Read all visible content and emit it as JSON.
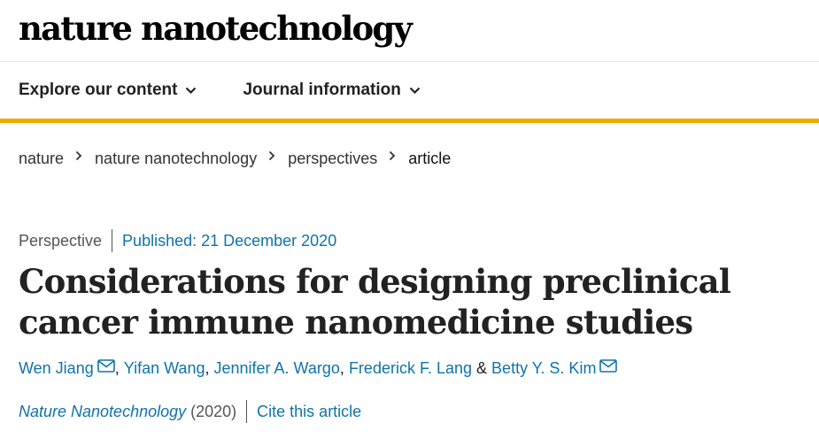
{
  "masthead": {
    "logo_text": "nature nanotechnology"
  },
  "nav": {
    "items": [
      {
        "label": "Explore our content",
        "icon": "chevron-down-icon"
      },
      {
        "label": "Journal information",
        "icon": "chevron-down-icon"
      }
    ]
  },
  "breadcrumb": {
    "items": [
      "nature",
      "nature nanotechnology",
      "perspectives",
      "article"
    ]
  },
  "article": {
    "type": "Perspective",
    "published": "Published: 21 December 2020",
    "title": "Considerations for designing preclinical cancer immune nanomedicine studies",
    "authors": [
      {
        "name": "Wen Jiang",
        "email_icon": true
      },
      {
        "name": "Yifan Wang",
        "email_icon": false
      },
      {
        "name": "Jennifer A. Wargo",
        "email_icon": false
      },
      {
        "name": "Frederick F. Lang",
        "email_icon": false
      },
      {
        "name": "Betty Y. S. Kim",
        "email_icon": true
      }
    ],
    "author_separator": ",",
    "author_last_separator": "&",
    "journal_name": "Nature Nanotechnology",
    "year": "(2020)",
    "cite_label": "Cite this article"
  },
  "colors": {
    "link": "#0f73a8",
    "accent_bar": "#f2a900",
    "text": "#222222"
  }
}
